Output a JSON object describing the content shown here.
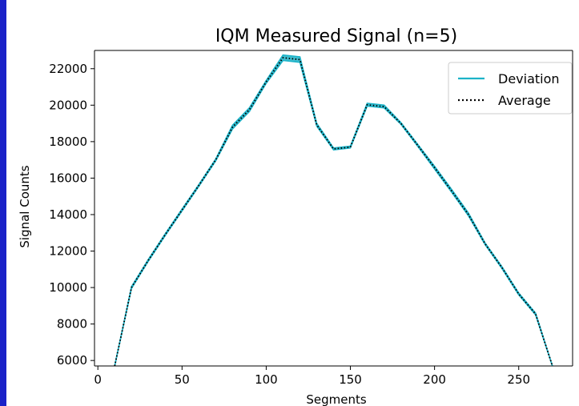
{
  "chart_data": {
    "type": "line",
    "title": "IQM Measured Signal (n=5)",
    "xlabel": "Segments",
    "ylabel": "Signal Counts",
    "xlim": [
      -2,
      282
    ],
    "ylim": [
      5700,
      23000
    ],
    "xticks": [
      0,
      50,
      100,
      150,
      200,
      250
    ],
    "yticks": [
      6000,
      8000,
      10000,
      12000,
      14000,
      16000,
      18000,
      20000,
      22000
    ],
    "legend_position": "top-right",
    "grid": false,
    "series": [
      {
        "name": "Deviation",
        "color": "#1cb3c8",
        "style": "solid-band",
        "x": [
          10,
          20,
          30,
          40,
          50,
          60,
          70,
          80,
          90,
          100,
          110,
          120,
          130,
          140,
          150,
          160,
          170,
          180,
          190,
          200,
          210,
          220,
          230,
          240,
          250,
          260,
          270
        ],
        "upper": [
          5700,
          10050,
          11550,
          12950,
          14300,
          15650,
          17050,
          18900,
          19850,
          21350,
          22750,
          22650,
          19000,
          17650,
          17750,
          20100,
          20000,
          19050,
          17850,
          16650,
          15400,
          14100,
          12450,
          11150,
          9700,
          8600,
          5700
        ],
        "lower": [
          5700,
          9950,
          11450,
          12850,
          14200,
          15550,
          16950,
          18700,
          19650,
          21200,
          22450,
          22350,
          18850,
          17550,
          17650,
          19950,
          19850,
          18950,
          17750,
          16500,
          15250,
          13950,
          12350,
          11050,
          9600,
          8500,
          5700
        ]
      },
      {
        "name": "Average",
        "color": "#000000",
        "style": "dotted",
        "x": [
          10,
          20,
          30,
          40,
          50,
          60,
          70,
          80,
          90,
          100,
          110,
          120,
          130,
          140,
          150,
          160,
          170,
          180,
          190,
          200,
          210,
          220,
          230,
          240,
          250,
          260,
          270
        ],
        "values": [
          5700,
          10000,
          11500,
          12900,
          14250,
          15600,
          17000,
          18800,
          19750,
          21280,
          22600,
          22500,
          18920,
          17600,
          17700,
          20020,
          19920,
          19000,
          17800,
          16580,
          15320,
          14020,
          12400,
          11100,
          9650,
          8550,
          5700
        ]
      }
    ]
  },
  "colors": {
    "left_bar": "#1a22c8"
  }
}
